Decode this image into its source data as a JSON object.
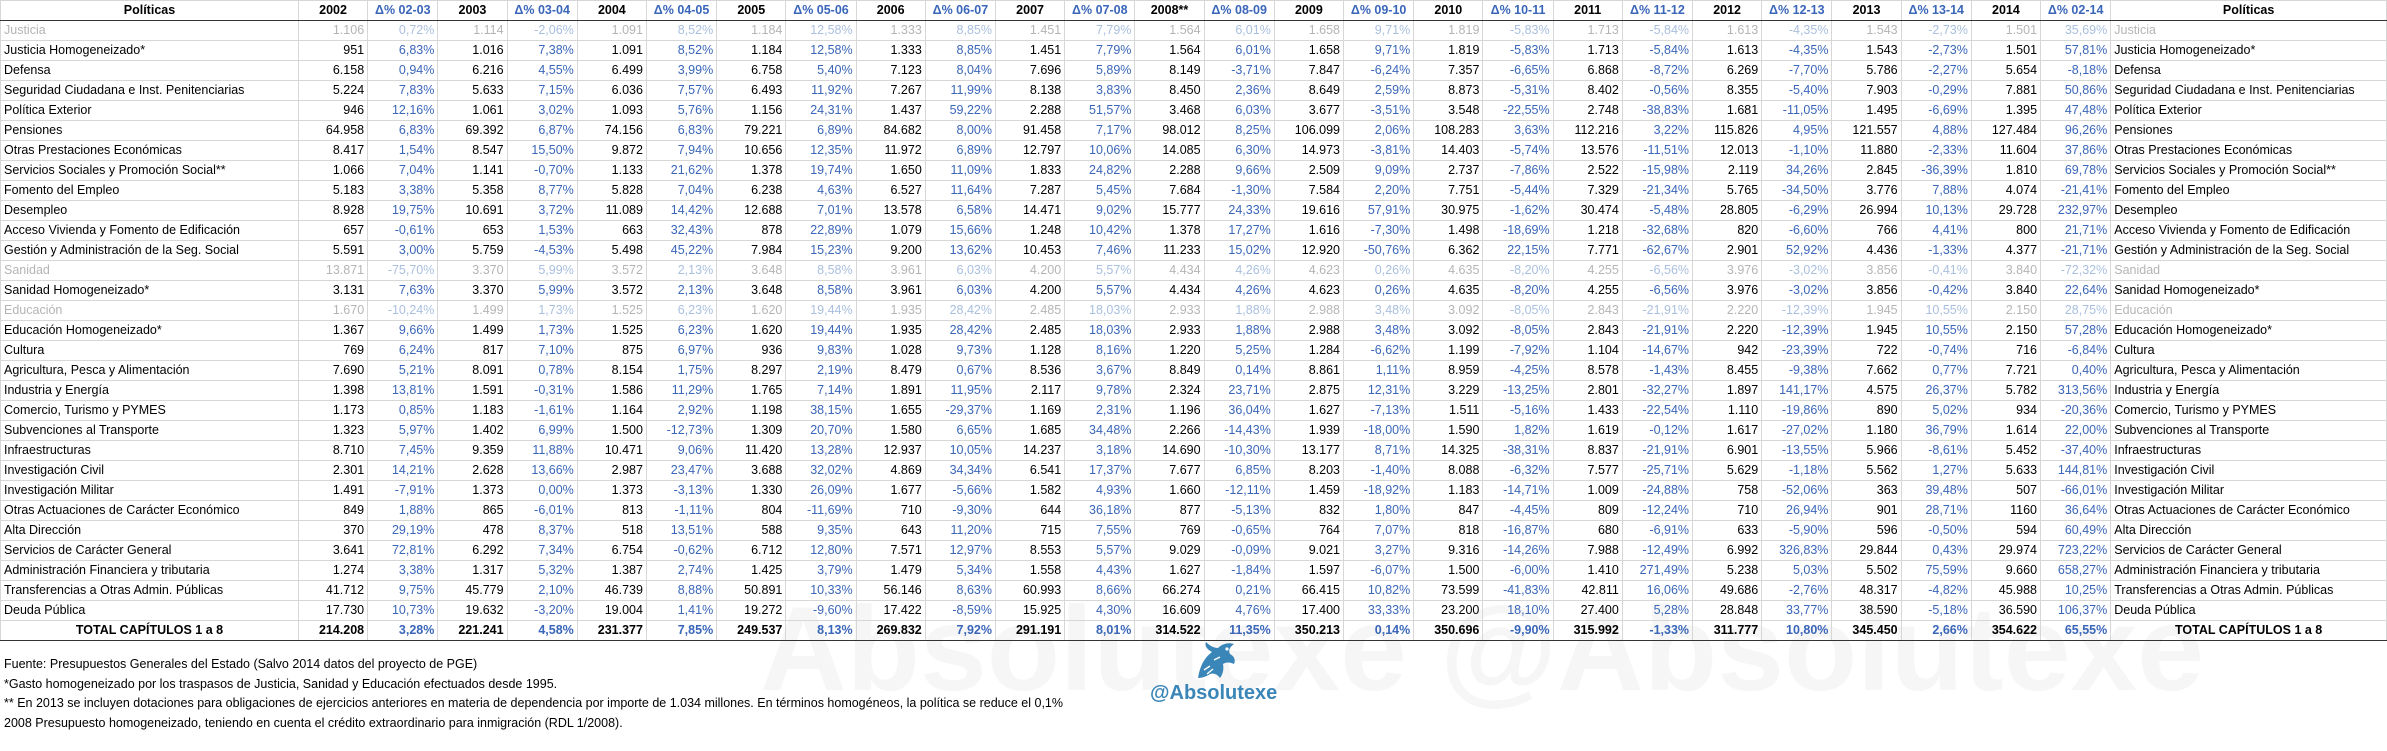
{
  "header": {
    "left_title": "Políticas",
    "right_title": "Políticas",
    "cols": [
      "2002",
      "Δ% 02-03",
      "2003",
      "Δ% 03-04",
      "2004",
      "Δ% 04-05",
      "2005",
      "Δ% 05-06",
      "2006",
      "Δ% 06-07",
      "2007",
      "Δ% 07-08",
      "2008**",
      "Δ% 08-09",
      "2009",
      "Δ% 09-10",
      "2010",
      "Δ% 10-11",
      "2011",
      "Δ% 11-12",
      "2012",
      "Δ% 12-13",
      "2013",
      "Δ% 13-14",
      "2014",
      "Δ% 02-14"
    ]
  },
  "rows": [
    {
      "name": "Justicia",
      "dim": true,
      "v": [
        "1.106",
        "0,72%",
        "1.114",
        "-2,06%",
        "1.091",
        "8,52%",
        "1.184",
        "12,58%",
        "1.333",
        "8,85%",
        "1.451",
        "7,79%",
        "1.564",
        "6,01%",
        "1.658",
        "9,71%",
        "1.819",
        "-5,83%",
        "1.713",
        "-5,84%",
        "1.613",
        "-4,35%",
        "1.543",
        "-2,73%",
        "1.501",
        "35,69%"
      ]
    },
    {
      "name": "Justicia Homogeneizado*",
      "dim": false,
      "v": [
        "951",
        "6,83%",
        "1.016",
        "7,38%",
        "1.091",
        "8,52%",
        "1.184",
        "12,58%",
        "1.333",
        "8,85%",
        "1.451",
        "7,79%",
        "1.564",
        "6,01%",
        "1.658",
        "9,71%",
        "1.819",
        "-5,83%",
        "1.713",
        "-5,84%",
        "1.613",
        "-4,35%",
        "1.543",
        "-2,73%",
        "1.501",
        "57,81%"
      ]
    },
    {
      "name": "Defensa",
      "dim": false,
      "v": [
        "6.158",
        "0,94%",
        "6.216",
        "4,55%",
        "6.499",
        "3,99%",
        "6.758",
        "5,40%",
        "7.123",
        "8,04%",
        "7.696",
        "5,89%",
        "8.149",
        "-3,71%",
        "7.847",
        "-6,24%",
        "7.357",
        "-6,65%",
        "6.868",
        "-8,72%",
        "6.269",
        "-7,70%",
        "5.786",
        "-2,27%",
        "5.654",
        "-8,18%"
      ]
    },
    {
      "name": "Seguridad Ciudadana e Inst. Penitenciarias",
      "dim": false,
      "v": [
        "5.224",
        "7,83%",
        "5.633",
        "7,15%",
        "6.036",
        "7,57%",
        "6.493",
        "11,92%",
        "7.267",
        "11,99%",
        "8.138",
        "3,83%",
        "8.450",
        "2,36%",
        "8.649",
        "2,59%",
        "8.873",
        "-5,31%",
        "8.402",
        "-0,56%",
        "8.355",
        "-5,40%",
        "7.903",
        "-0,29%",
        "7.881",
        "50,86%"
      ]
    },
    {
      "name": "Política Exterior",
      "dim": false,
      "v": [
        "946",
        "12,16%",
        "1.061",
        "3,02%",
        "1.093",
        "5,76%",
        "1.156",
        "24,31%",
        "1.437",
        "59,22%",
        "2.288",
        "51,57%",
        "3.468",
        "6,03%",
        "3.677",
        "-3,51%",
        "3.548",
        "-22,55%",
        "2.748",
        "-38,83%",
        "1.681",
        "-11,05%",
        "1.495",
        "-6,69%",
        "1.395",
        "47,48%"
      ]
    },
    {
      "name": "Pensiones",
      "dim": false,
      "v": [
        "64.958",
        "6,83%",
        "69.392",
        "6,87%",
        "74.156",
        "6,83%",
        "79.221",
        "6,89%",
        "84.682",
        "8,00%",
        "91.458",
        "7,17%",
        "98.012",
        "8,25%",
        "106.099",
        "2,06%",
        "108.283",
        "3,63%",
        "112.216",
        "3,22%",
        "115.826",
        "4,95%",
        "121.557",
        "4,88%",
        "127.484",
        "96,26%"
      ]
    },
    {
      "name": "Otras Prestaciones Económicas",
      "dim": false,
      "v": [
        "8.417",
        "1,54%",
        "8.547",
        "15,50%",
        "9.872",
        "7,94%",
        "10.656",
        "12,35%",
        "11.972",
        "6,89%",
        "12.797",
        "10,06%",
        "14.085",
        "6,30%",
        "14.973",
        "-3,81%",
        "14.403",
        "-5,74%",
        "13.576",
        "-11,51%",
        "12.013",
        "-1,10%",
        "11.880",
        "-2,33%",
        "11.604",
        "37,86%"
      ]
    },
    {
      "name": "Servicios Sociales y Promoción Social**",
      "dim": false,
      "v": [
        "1.066",
        "7,04%",
        "1.141",
        "-0,70%",
        "1.133",
        "21,62%",
        "1.378",
        "19,74%",
        "1.650",
        "11,09%",
        "1.833",
        "24,82%",
        "2.288",
        "9,66%",
        "2.509",
        "9,09%",
        "2.737",
        "-7,86%",
        "2.522",
        "-15,98%",
        "2.119",
        "34,26%",
        "2.845",
        "-36,39%",
        "1.810",
        "69,78%"
      ]
    },
    {
      "name": "Fomento del Empleo",
      "dim": false,
      "v": [
        "5.183",
        "3,38%",
        "5.358",
        "8,77%",
        "5.828",
        "7,04%",
        "6.238",
        "4,63%",
        "6.527",
        "11,64%",
        "7.287",
        "5,45%",
        "7.684",
        "-1,30%",
        "7.584",
        "2,20%",
        "7.751",
        "-5,44%",
        "7.329",
        "-21,34%",
        "5.765",
        "-34,50%",
        "3.776",
        "7,88%",
        "4.074",
        "-21,41%"
      ]
    },
    {
      "name": "Desempleo",
      "dim": false,
      "v": [
        "8.928",
        "19,75%",
        "10.691",
        "3,72%",
        "11.089",
        "14,42%",
        "12.688",
        "7,01%",
        "13.578",
        "6,58%",
        "14.471",
        "9,02%",
        "15.777",
        "24,33%",
        "19.616",
        "57,91%",
        "30.975",
        "-1,62%",
        "30.474",
        "-5,48%",
        "28.805",
        "-6,29%",
        "26.994",
        "10,13%",
        "29.728",
        "232,97%"
      ]
    },
    {
      "name": "Acceso Vivienda y Fomento de Edificación",
      "dim": false,
      "v": [
        "657",
        "-0,61%",
        "653",
        "1,53%",
        "663",
        "32,43%",
        "878",
        "22,89%",
        "1.079",
        "15,66%",
        "1.248",
        "10,42%",
        "1.378",
        "17,27%",
        "1.616",
        "-7,30%",
        "1.498",
        "-18,69%",
        "1.218",
        "-32,68%",
        "820",
        "-6,60%",
        "766",
        "4,41%",
        "800",
        "21,71%"
      ]
    },
    {
      "name": "Gestión y Administración de la Seg. Social",
      "dim": false,
      "v": [
        "5.591",
        "3,00%",
        "5.759",
        "-4,53%",
        "5.498",
        "45,22%",
        "7.984",
        "15,23%",
        "9.200",
        "13,62%",
        "10.453",
        "7,46%",
        "11.233",
        "15,02%",
        "12.920",
        "-50,76%",
        "6.362",
        "22,15%",
        "7.771",
        "-62,67%",
        "2.901",
        "52,92%",
        "4.436",
        "-1,33%",
        "4.377",
        "-21,71%"
      ]
    },
    {
      "name": "Sanidad",
      "dim": true,
      "v": [
        "13.871",
        "-75,70%",
        "3.370",
        "5,99%",
        "3.572",
        "2,13%",
        "3.648",
        "8,58%",
        "3.961",
        "6,03%",
        "4.200",
        "5,57%",
        "4.434",
        "4,26%",
        "4.623",
        "0,26%",
        "4.635",
        "-8,20%",
        "4.255",
        "-6,56%",
        "3.976",
        "-3,02%",
        "3.856",
        "-0,41%",
        "3.840",
        "-72,32%"
      ]
    },
    {
      "name": "Sanidad Homogeneizado*",
      "dim": false,
      "v": [
        "3.131",
        "7,63%",
        "3.370",
        "5,99%",
        "3.572",
        "2,13%",
        "3.648",
        "8,58%",
        "3.961",
        "6,03%",
        "4.200",
        "5,57%",
        "4.434",
        "4,26%",
        "4.623",
        "0,26%",
        "4.635",
        "-8,20%",
        "4.255",
        "-6,56%",
        "3.976",
        "-3,02%",
        "3.856",
        "-0,42%",
        "3.840",
        "22,64%"
      ]
    },
    {
      "name": "Educación",
      "dim": true,
      "v": [
        "1.670",
        "-10,24%",
        "1.499",
        "1,73%",
        "1.525",
        "6,23%",
        "1.620",
        "19,44%",
        "1.935",
        "28,42%",
        "2.485",
        "18,03%",
        "2.933",
        "1,88%",
        "2.988",
        "3,48%",
        "3.092",
        "-8,05%",
        "2.843",
        "-21,91%",
        "2.220",
        "-12,39%",
        "1.945",
        "10,55%",
        "2.150",
        "28,75%"
      ]
    },
    {
      "name": "Educación Homogeneizado*",
      "dim": false,
      "v": [
        "1.367",
        "9,66%",
        "1.499",
        "1,73%",
        "1.525",
        "6,23%",
        "1.620",
        "19,44%",
        "1.935",
        "28,42%",
        "2.485",
        "18,03%",
        "2.933",
        "1,88%",
        "2.988",
        "3,48%",
        "3.092",
        "-8,05%",
        "2.843",
        "-21,91%",
        "2.220",
        "-12,39%",
        "1.945",
        "10,55%",
        "2.150",
        "57,28%"
      ]
    },
    {
      "name": "Cultura",
      "dim": false,
      "v": [
        "769",
        "6,24%",
        "817",
        "7,10%",
        "875",
        "6,97%",
        "936",
        "9,83%",
        "1.028",
        "9,73%",
        "1.128",
        "8,16%",
        "1.220",
        "5,25%",
        "1.284",
        "-6,62%",
        "1.199",
        "-7,92%",
        "1.104",
        "-14,67%",
        "942",
        "-23,39%",
        "722",
        "-0,74%",
        "716",
        "-6,84%"
      ]
    },
    {
      "name": "Agricultura, Pesca y Alimentación",
      "dim": false,
      "v": [
        "7.690",
        "5,21%",
        "8.091",
        "0,78%",
        "8.154",
        "1,75%",
        "8.297",
        "2,19%",
        "8.479",
        "0,67%",
        "8.536",
        "3,67%",
        "8.849",
        "0,14%",
        "8.861",
        "1,11%",
        "8.959",
        "-4,25%",
        "8.578",
        "-1,43%",
        "8.455",
        "-9,38%",
        "7.662",
        "0,77%",
        "7.721",
        "0,40%"
      ]
    },
    {
      "name": "Industria y Energía",
      "dim": false,
      "v": [
        "1.398",
        "13,81%",
        "1.591",
        "-0,31%",
        "1.586",
        "11,29%",
        "1.765",
        "7,14%",
        "1.891",
        "11,95%",
        "2.117",
        "9,78%",
        "2.324",
        "23,71%",
        "2.875",
        "12,31%",
        "3.229",
        "-13,25%",
        "2.801",
        "-32,27%",
        "1.897",
        "141,17%",
        "4.575",
        "26,37%",
        "5.782",
        "313,56%"
      ]
    },
    {
      "name": "Comercio, Turismo y PYMES",
      "dim": false,
      "v": [
        "1.173",
        "0,85%",
        "1.183",
        "-1,61%",
        "1.164",
        "2,92%",
        "1.198",
        "38,15%",
        "1.655",
        "-29,37%",
        "1.169",
        "2,31%",
        "1.196",
        "36,04%",
        "1.627",
        "-7,13%",
        "1.511",
        "-5,16%",
        "1.433",
        "-22,54%",
        "1.110",
        "-19,86%",
        "890",
        "5,02%",
        "934",
        "-20,36%"
      ]
    },
    {
      "name": "Subvenciones al Transporte",
      "dim": false,
      "v": [
        "1.323",
        "5,97%",
        "1.402",
        "6,99%",
        "1.500",
        "-12,73%",
        "1.309",
        "20,70%",
        "1.580",
        "6,65%",
        "1.685",
        "34,48%",
        "2.266",
        "-14,43%",
        "1.939",
        "-18,00%",
        "1.590",
        "1,82%",
        "1.619",
        "-0,12%",
        "1.617",
        "-27,02%",
        "1.180",
        "36,79%",
        "1.614",
        "22,00%"
      ]
    },
    {
      "name": "Infraestructuras",
      "dim": false,
      "v": [
        "8.710",
        "7,45%",
        "9.359",
        "11,88%",
        "10.471",
        "9,06%",
        "11.420",
        "13,28%",
        "12.937",
        "10,05%",
        "14.237",
        "3,18%",
        "14.690",
        "-10,30%",
        "13.177",
        "8,71%",
        "14.325",
        "-38,31%",
        "8.837",
        "-21,91%",
        "6.901",
        "-13,55%",
        "5.966",
        "-8,61%",
        "5.452",
        "-37,40%"
      ]
    },
    {
      "name": "Investigación Civil",
      "dim": false,
      "v": [
        "2.301",
        "14,21%",
        "2.628",
        "13,66%",
        "2.987",
        "23,47%",
        "3.688",
        "32,02%",
        "4.869",
        "34,34%",
        "6.541",
        "17,37%",
        "7.677",
        "6,85%",
        "8.203",
        "-1,40%",
        "8.088",
        "-6,32%",
        "7.577",
        "-25,71%",
        "5.629",
        "-1,18%",
        "5.562",
        "1,27%",
        "5.633",
        "144,81%"
      ]
    },
    {
      "name": "Investigación Militar",
      "dim": false,
      "v": [
        "1.491",
        "-7,91%",
        "1.373",
        "0,00%",
        "1.373",
        "-3,13%",
        "1.330",
        "26,09%",
        "1.677",
        "-5,66%",
        "1.582",
        "4,93%",
        "1.660",
        "-12,11%",
        "1.459",
        "-18,92%",
        "1.183",
        "-14,71%",
        "1.009",
        "-24,88%",
        "758",
        "-52,06%",
        "363",
        "39,48%",
        "507",
        "-66,01%"
      ]
    },
    {
      "name": "Otras Actuaciones de Carácter Económico",
      "dim": false,
      "v": [
        "849",
        "1,88%",
        "865",
        "-6,01%",
        "813",
        "-1,11%",
        "804",
        "-11,69%",
        "710",
        "-9,30%",
        "644",
        "36,18%",
        "877",
        "-5,13%",
        "832",
        "1,80%",
        "847",
        "-4,45%",
        "809",
        "-12,24%",
        "710",
        "26,94%",
        "901",
        "28,71%",
        "1160",
        "36,64%"
      ]
    },
    {
      "name": "Alta Dirección",
      "dim": false,
      "v": [
        "370",
        "29,19%",
        "478",
        "8,37%",
        "518",
        "13,51%",
        "588",
        "9,35%",
        "643",
        "11,20%",
        "715",
        "7,55%",
        "769",
        "-0,65%",
        "764",
        "7,07%",
        "818",
        "-16,87%",
        "680",
        "-6,91%",
        "633",
        "-5,90%",
        "596",
        "-0,50%",
        "594",
        "60,49%"
      ]
    },
    {
      "name": "Servicios de Carácter General",
      "dim": false,
      "v": [
        "3.641",
        "72,81%",
        "6.292",
        "7,34%",
        "6.754",
        "-0,62%",
        "6.712",
        "12,80%",
        "7.571",
        "12,97%",
        "8.553",
        "5,57%",
        "9.029",
        "-0,09%",
        "9.021",
        "3,27%",
        "9.316",
        "-14,26%",
        "7.988",
        "-12,49%",
        "6.992",
        "326,83%",
        "29.844",
        "0,43%",
        "29.974",
        "723,22%"
      ]
    },
    {
      "name": "Administración Financiera y tributaria",
      "dim": false,
      "v": [
        "1.274",
        "3,38%",
        "1.317",
        "5,32%",
        "1.387",
        "2,74%",
        "1.425",
        "3,79%",
        "1.479",
        "5,34%",
        "1.558",
        "4,43%",
        "1.627",
        "-1,84%",
        "1.597",
        "-6,07%",
        "1.500",
        "-6,00%",
        "1.410",
        "271,49%",
        "5.238",
        "5,03%",
        "5.502",
        "75,59%",
        "9.660",
        "658,27%"
      ]
    },
    {
      "name": "Transferencias a Otras Admin. Públicas",
      "dim": false,
      "v": [
        "41.712",
        "9,75%",
        "45.779",
        "2,10%",
        "46.739",
        "8,88%",
        "50.891",
        "10,33%",
        "56.146",
        "8,63%",
        "60.993",
        "8,66%",
        "66.274",
        "0,21%",
        "66.415",
        "10,82%",
        "73.599",
        "-41,83%",
        "42.811",
        "16,06%",
        "49.686",
        "-2,76%",
        "48.317",
        "-4,82%",
        "45.988",
        "10,25%"
      ]
    },
    {
      "name": "Deuda Pública",
      "dim": false,
      "v": [
        "17.730",
        "10,73%",
        "19.632",
        "-3,20%",
        "19.004",
        "1,41%",
        "19.272",
        "-9,60%",
        "17.422",
        "-8,59%",
        "15.925",
        "4,30%",
        "16.609",
        "4,76%",
        "17.400",
        "33,33%",
        "23.200",
        "18,10%",
        "27.400",
        "5,28%",
        "28.848",
        "33,77%",
        "38.590",
        "-5,18%",
        "36.590",
        "106,37%"
      ]
    }
  ],
  "total": {
    "name": "TOTAL CAPÍTULOS 1 a 8",
    "v": [
      "214.208",
      "3,28%",
      "221.241",
      "4,58%",
      "231.377",
      "7,85%",
      "249.537",
      "8,13%",
      "269.832",
      "7,92%",
      "291.191",
      "8,01%",
      "314.522",
      "11,35%",
      "350.213",
      "0,14%",
      "350.696",
      "-9,90%",
      "315.992",
      "-1,33%",
      "311.777",
      "10,80%",
      "345.450",
      "2,66%",
      "354.622",
      "65,55%"
    ]
  },
  "footnotes": [
    "Fuente: Presupuestos Generales del Estado (Salvo 2014 datos del proyecto de PGE)",
    "*Gasto homogeneizado por los traspasos de Justicia, Sanidad y Educación efectuados desde 1995.",
    "** En 2013 se incluyen dotaciones para obligaciones de ejercicios anteriores en materia de dependencia por importe de 1.034 millones. En términos homogéneos, la política se reduce el 0,1%",
    "2008 Presupuesto homogeneizado, teniendo en cuenta el crédito extraordinario para inmigración (RDL 1/2008)."
  ],
  "brand": {
    "handle": "@Absolutexe",
    "watermark": "Absolutexe @Absolutexe",
    "logo_icon": "griffin-icon",
    "accent": "#3b86b8",
    "delta_color": "#3a66b9"
  }
}
